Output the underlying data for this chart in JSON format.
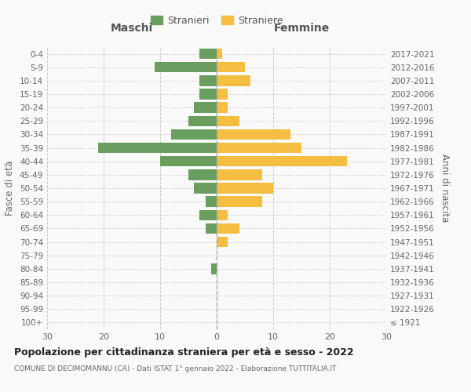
{
  "age_groups": [
    "100+",
    "95-99",
    "90-94",
    "85-89",
    "80-84",
    "75-79",
    "70-74",
    "65-69",
    "60-64",
    "55-59",
    "50-54",
    "45-49",
    "40-44",
    "35-39",
    "30-34",
    "25-29",
    "20-24",
    "15-19",
    "10-14",
    "5-9",
    "0-4"
  ],
  "birth_years": [
    "≤ 1921",
    "1922-1926",
    "1927-1931",
    "1932-1936",
    "1937-1941",
    "1942-1946",
    "1947-1951",
    "1952-1956",
    "1957-1961",
    "1962-1966",
    "1967-1971",
    "1972-1976",
    "1977-1981",
    "1982-1986",
    "1987-1991",
    "1992-1996",
    "1997-2001",
    "2002-2006",
    "2007-2011",
    "2012-2016",
    "2017-2021"
  ],
  "males": [
    0,
    0,
    0,
    0,
    1,
    0,
    0,
    2,
    3,
    2,
    4,
    5,
    10,
    21,
    8,
    5,
    4,
    3,
    3,
    11,
    3
  ],
  "females": [
    0,
    0,
    0,
    0,
    0,
    0,
    2,
    4,
    2,
    8,
    10,
    8,
    23,
    15,
    13,
    4,
    2,
    2,
    6,
    5,
    1
  ],
  "male_color": "#6a9e5e",
  "female_color": "#f5be41",
  "background_color": "#f9f9f9",
  "grid_color": "#cccccc",
  "title": "Popolazione per cittadinanza straniera per età e sesso - 2022",
  "subtitle": "COMUNE DI DECIMOMANNU (CA) - Dati ISTAT 1° gennaio 2022 - Elaborazione TUTTITALIA.IT",
  "xlabel_left": "Maschi",
  "xlabel_right": "Femmine",
  "ylabel_left": "Fasce di età",
  "ylabel_right": "Anni di nascita",
  "legend_males": "Stranieri",
  "legend_females": "Straniere",
  "xlim": 30,
  "bar_height": 0.78
}
